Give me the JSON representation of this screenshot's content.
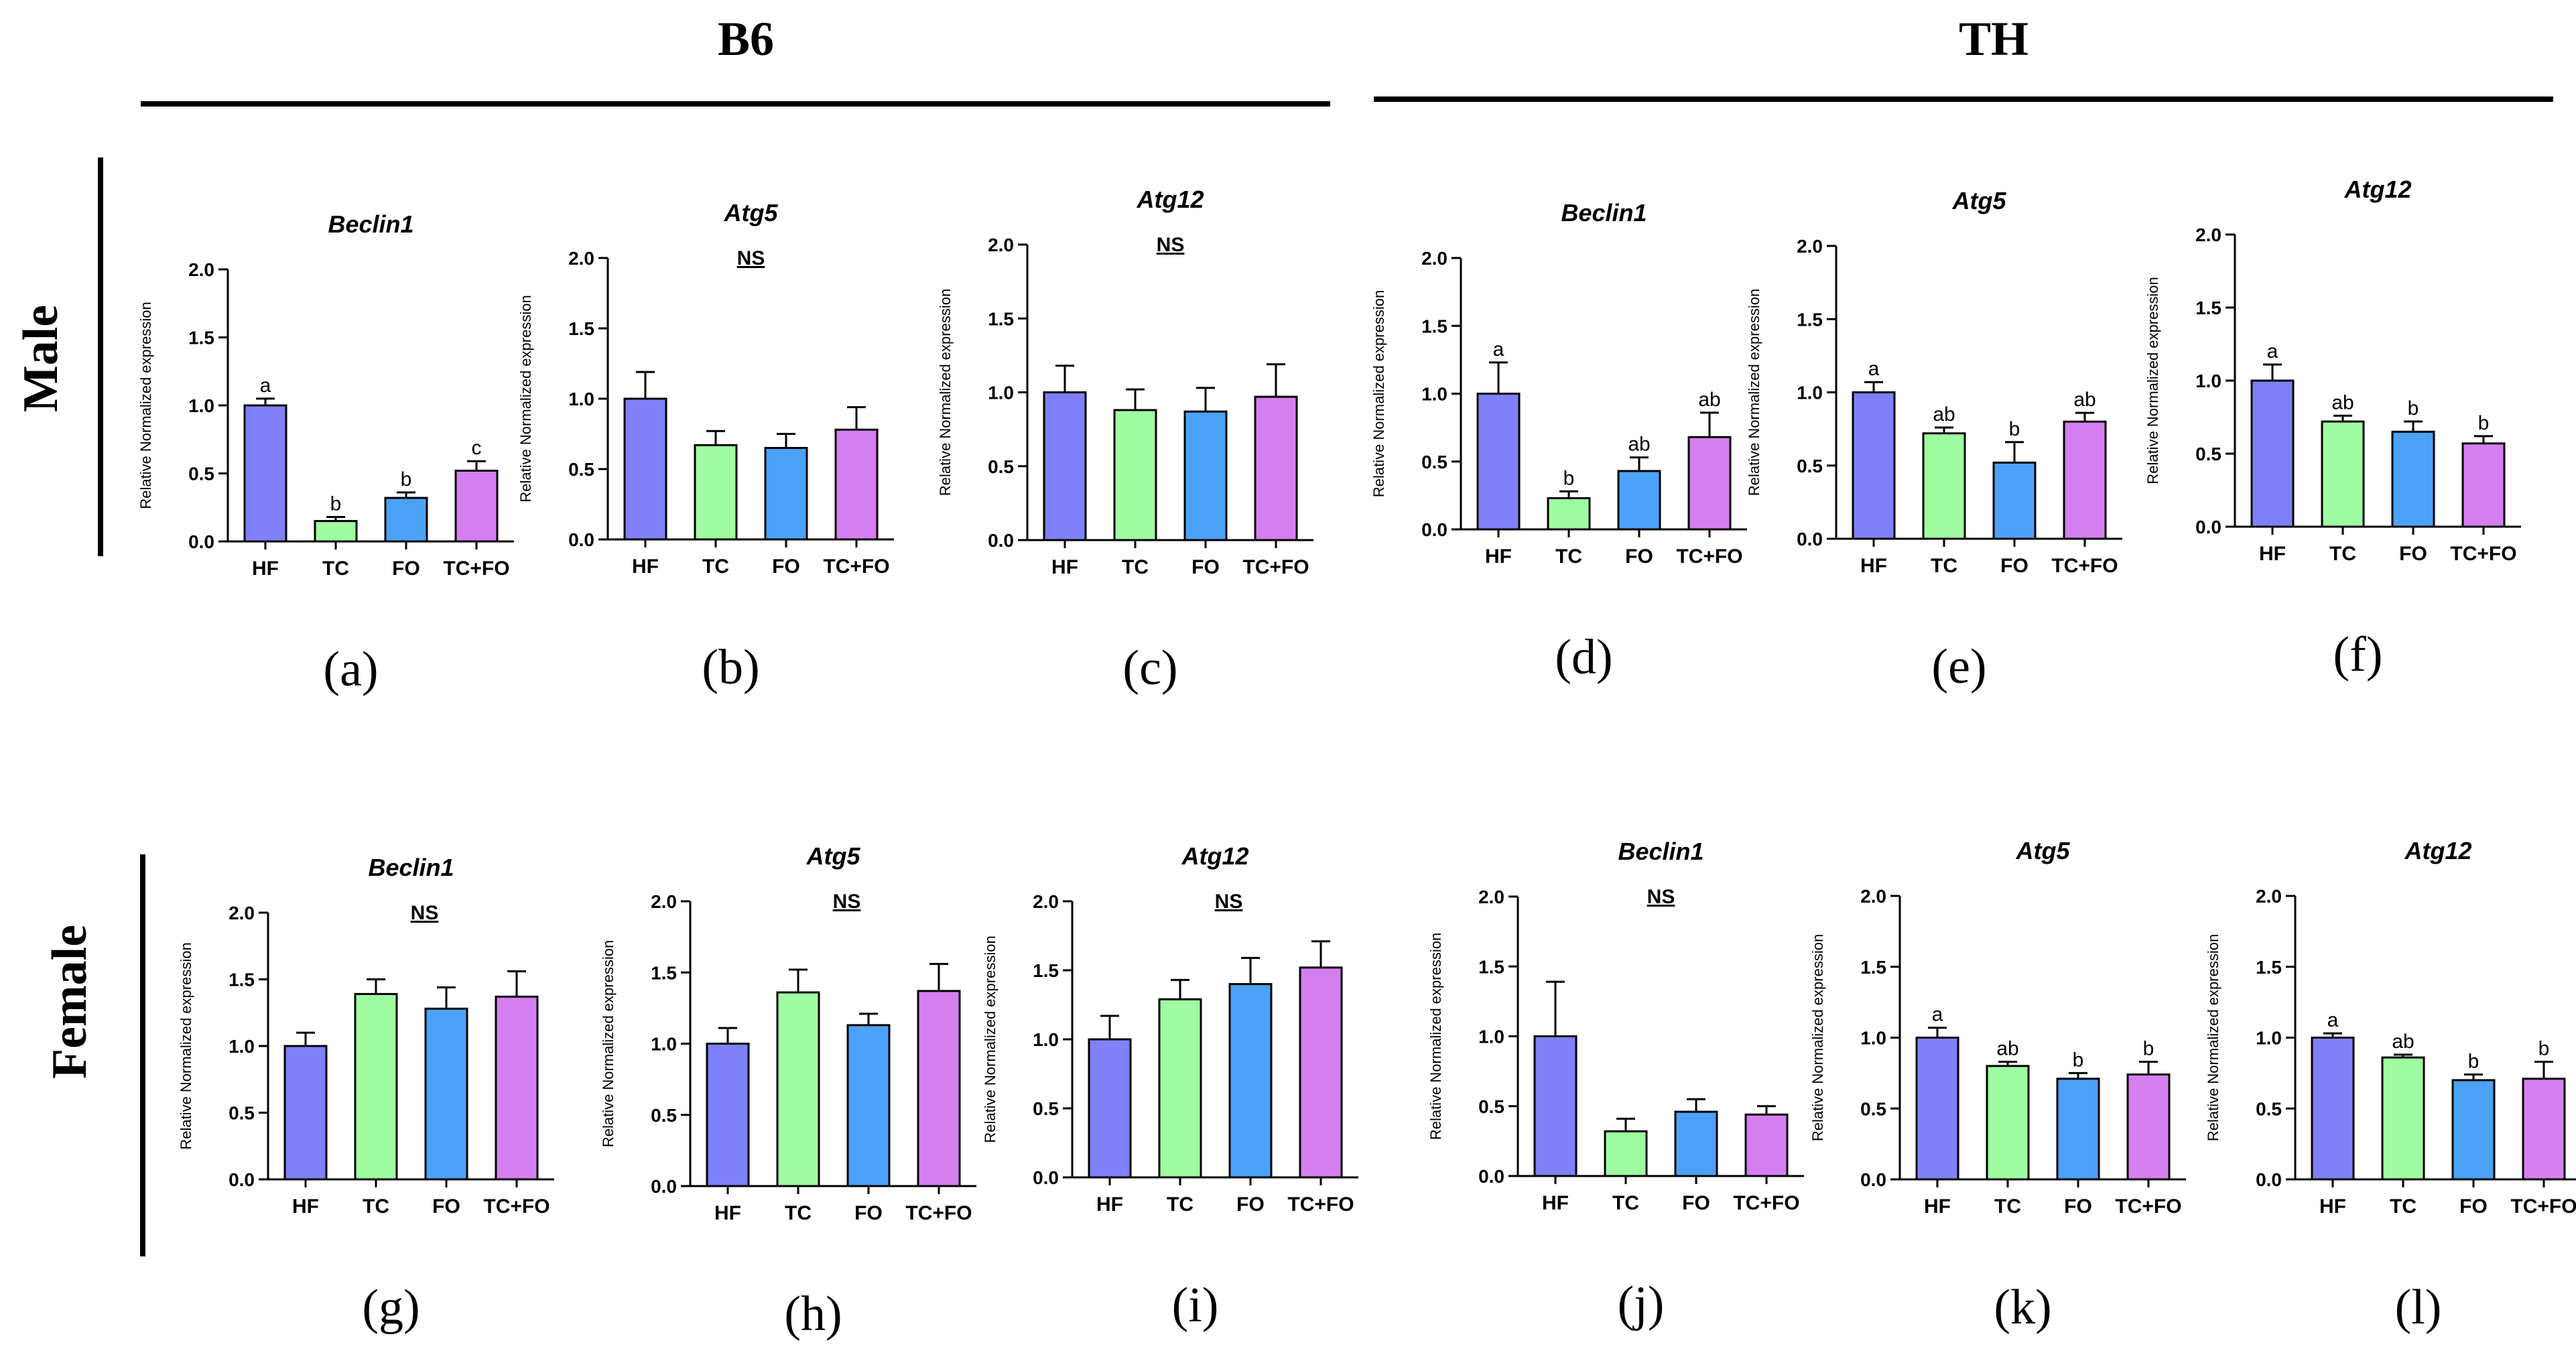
{
  "header": {
    "strain_labels": [
      "B6",
      "TH"
    ],
    "sex_labels": [
      "Male",
      "Female"
    ],
    "ylabel": "Relative Normalized expression"
  },
  "colors": {
    "HF": "#8080f8",
    "TC": "#a0fca0",
    "FO": "#4ca2f8",
    "TC+FO": "#d57ef0"
  },
  "chart_data": [
    {
      "panel": "(a)",
      "type": "bar",
      "title": "Beclin1",
      "significance": "",
      "categories": [
        "HF",
        "TC",
        "FO",
        "TC+FO"
      ],
      "values": [
        1.0,
        0.15,
        0.32,
        0.52
      ],
      "errors": [
        0.05,
        0.03,
        0.04,
        0.07
      ],
      "letters": [
        "a",
        "b",
        "b",
        "c"
      ],
      "ylim": [
        0,
        2.0
      ],
      "yticks": [
        "0.0",
        "0.5",
        "1.0",
        "1.5",
        "2.0"
      ],
      "xlabel": "",
      "ylabel": "Relative Normalized expression"
    },
    {
      "panel": "(b)",
      "type": "bar",
      "title": "Atg5",
      "significance": "NS",
      "categories": [
        "HF",
        "TC",
        "FO",
        "TC+FO"
      ],
      "values": [
        1.0,
        0.67,
        0.65,
        0.78
      ],
      "errors": [
        0.19,
        0.1,
        0.1,
        0.16
      ],
      "letters": [
        "",
        "",
        "",
        ""
      ],
      "ylim": [
        0,
        2.0
      ],
      "yticks": [
        "0.0",
        "0.5",
        "1.0",
        "1.5",
        "2.0"
      ],
      "xlabel": "",
      "ylabel": "Relative Normalized expression"
    },
    {
      "panel": "(c)",
      "type": "bar",
      "title": "Atg12",
      "significance": "NS",
      "categories": [
        "HF",
        "TC",
        "FO",
        "TC+FO"
      ],
      "values": [
        1.0,
        0.88,
        0.87,
        0.97
      ],
      "errors": [
        0.18,
        0.14,
        0.16,
        0.22
      ],
      "letters": [
        "",
        "",
        "",
        ""
      ],
      "ylim": [
        0,
        2.0
      ],
      "yticks": [
        "0.0",
        "0.5",
        "1.0",
        "1.5",
        "2.0"
      ],
      "xlabel": "",
      "ylabel": "Relative Normalized expression"
    },
    {
      "panel": "(d)",
      "type": "bar",
      "title": "Beclin1",
      "significance": "",
      "categories": [
        "HF",
        "TC",
        "FO",
        "TC+FO"
      ],
      "values": [
        1.0,
        0.23,
        0.43,
        0.68
      ],
      "errors": [
        0.23,
        0.05,
        0.1,
        0.18
      ],
      "letters": [
        "a",
        "b",
        "ab",
        "ab"
      ],
      "ylim": [
        0,
        2.0
      ],
      "yticks": [
        "0.0",
        "0.5",
        "1.0",
        "1.5",
        "2.0"
      ],
      "xlabel": "",
      "ylabel": "Relative Normalized expression"
    },
    {
      "panel": "(e)",
      "type": "bar",
      "title": "Atg5",
      "significance": "",
      "categories": [
        "HF",
        "TC",
        "FO",
        "TC+FO"
      ],
      "values": [
        1.0,
        0.72,
        0.52,
        0.8
      ],
      "errors": [
        0.07,
        0.04,
        0.14,
        0.06
      ],
      "letters": [
        "a",
        "ab",
        "b",
        "ab"
      ],
      "ylim": [
        0,
        2.0
      ],
      "yticks": [
        "0.0",
        "0.5",
        "1.0",
        "1.5",
        "2.0"
      ],
      "xlabel": "",
      "ylabel": "Relative Normalized expression"
    },
    {
      "panel": "(f)",
      "type": "bar",
      "title": "Atg12",
      "significance": "",
      "categories": [
        "HF",
        "TC",
        "FO",
        "TC+FO"
      ],
      "values": [
        1.0,
        0.72,
        0.65,
        0.57
      ],
      "errors": [
        0.11,
        0.04,
        0.07,
        0.05
      ],
      "letters": [
        "a",
        "ab",
        "b",
        "b"
      ],
      "ylim": [
        0,
        2.0
      ],
      "yticks": [
        "0.0",
        "0.5",
        "1.0",
        "1.5",
        "2.0"
      ],
      "xlabel": "",
      "ylabel": "Relative Normalized expression"
    },
    {
      "panel": "(g)",
      "type": "bar",
      "title": "Beclin1",
      "significance": "NS",
      "categories": [
        "HF",
        "TC",
        "FO",
        "TC+FO"
      ],
      "values": [
        1.0,
        1.39,
        1.28,
        1.37
      ],
      "errors": [
        0.1,
        0.11,
        0.16,
        0.19
      ],
      "letters": [
        "",
        "",
        "",
        ""
      ],
      "ylim": [
        0,
        2.0
      ],
      "yticks": [
        "0.0",
        "0.5",
        "1.0",
        "1.5",
        "2.0"
      ],
      "xlabel": "",
      "ylabel": "Relative Normalized expression"
    },
    {
      "panel": "(h)",
      "type": "bar",
      "title": "Atg5",
      "significance": "NS",
      "categories": [
        "HF",
        "TC",
        "FO",
        "TC+FO"
      ],
      "values": [
        1.0,
        1.36,
        1.13,
        1.37
      ],
      "errors": [
        0.11,
        0.16,
        0.08,
        0.19
      ],
      "letters": [
        "",
        "",
        "",
        ""
      ],
      "ylim": [
        0,
        2.0
      ],
      "yticks": [
        "0.0",
        "0.5",
        "1.0",
        "1.5",
        "2.0"
      ],
      "xlabel": "",
      "ylabel": "Relative Normalized expression"
    },
    {
      "panel": "(i)",
      "type": "bar",
      "title": "Atg12",
      "significance": "NS",
      "categories": [
        "HF",
        "TC",
        "FO",
        "TC+FO"
      ],
      "values": [
        1.0,
        1.29,
        1.4,
        1.52
      ],
      "errors": [
        0.17,
        0.14,
        0.19,
        0.19
      ],
      "letters": [
        "",
        "",
        "",
        ""
      ],
      "ylim": [
        0,
        2.0
      ],
      "yticks": [
        "0.0",
        "0.5",
        "1.0",
        "1.5",
        "2.0"
      ],
      "xlabel": "",
      "ylabel": "Relative Normalized expression"
    },
    {
      "panel": "(j)",
      "type": "bar",
      "title": "Beclin1",
      "significance": "NS",
      "categories": [
        "HF",
        "TC",
        "FO",
        "TC+FO"
      ],
      "values": [
        1.0,
        0.32,
        0.46,
        0.44
      ],
      "errors": [
        0.39,
        0.09,
        0.09,
        0.06
      ],
      "letters": [
        "",
        "",
        "",
        ""
      ],
      "ylim": [
        0,
        2.0
      ],
      "yticks": [
        "0.0",
        "0.5",
        "1.0",
        "1.5",
        "2.0"
      ],
      "xlabel": "",
      "ylabel": "Relative Normalized expression"
    },
    {
      "panel": "(k)",
      "type": "bar",
      "title": "Atg5",
      "significance": "",
      "categories": [
        "HF",
        "TC",
        "FO",
        "TC+FO"
      ],
      "values": [
        1.0,
        0.8,
        0.71,
        0.74
      ],
      "errors": [
        0.07,
        0.03,
        0.04,
        0.09
      ],
      "letters": [
        "a",
        "ab",
        "b",
        "b"
      ],
      "ylim": [
        0,
        2.0
      ],
      "yticks": [
        "0.0",
        "0.5",
        "1.0",
        "1.5",
        "2.0"
      ],
      "xlabel": "",
      "ylabel": "Relative Normalized expression"
    },
    {
      "panel": "(l)",
      "type": "bar",
      "title": "Atg12",
      "significance": "",
      "categories": [
        "HF",
        "TC",
        "FO",
        "TC+FO"
      ],
      "values": [
        1.0,
        0.86,
        0.7,
        0.71
      ],
      "errors": [
        0.03,
        0.02,
        0.04,
        0.12
      ],
      "letters": [
        "a",
        "ab",
        "b",
        "b"
      ],
      "ylim": [
        0,
        2.0
      ],
      "yticks": [
        "0.0",
        "0.5",
        "1.0",
        "1.5",
        "2.0"
      ],
      "xlabel": "",
      "ylabel": "Relative Normalized expression"
    }
  ]
}
